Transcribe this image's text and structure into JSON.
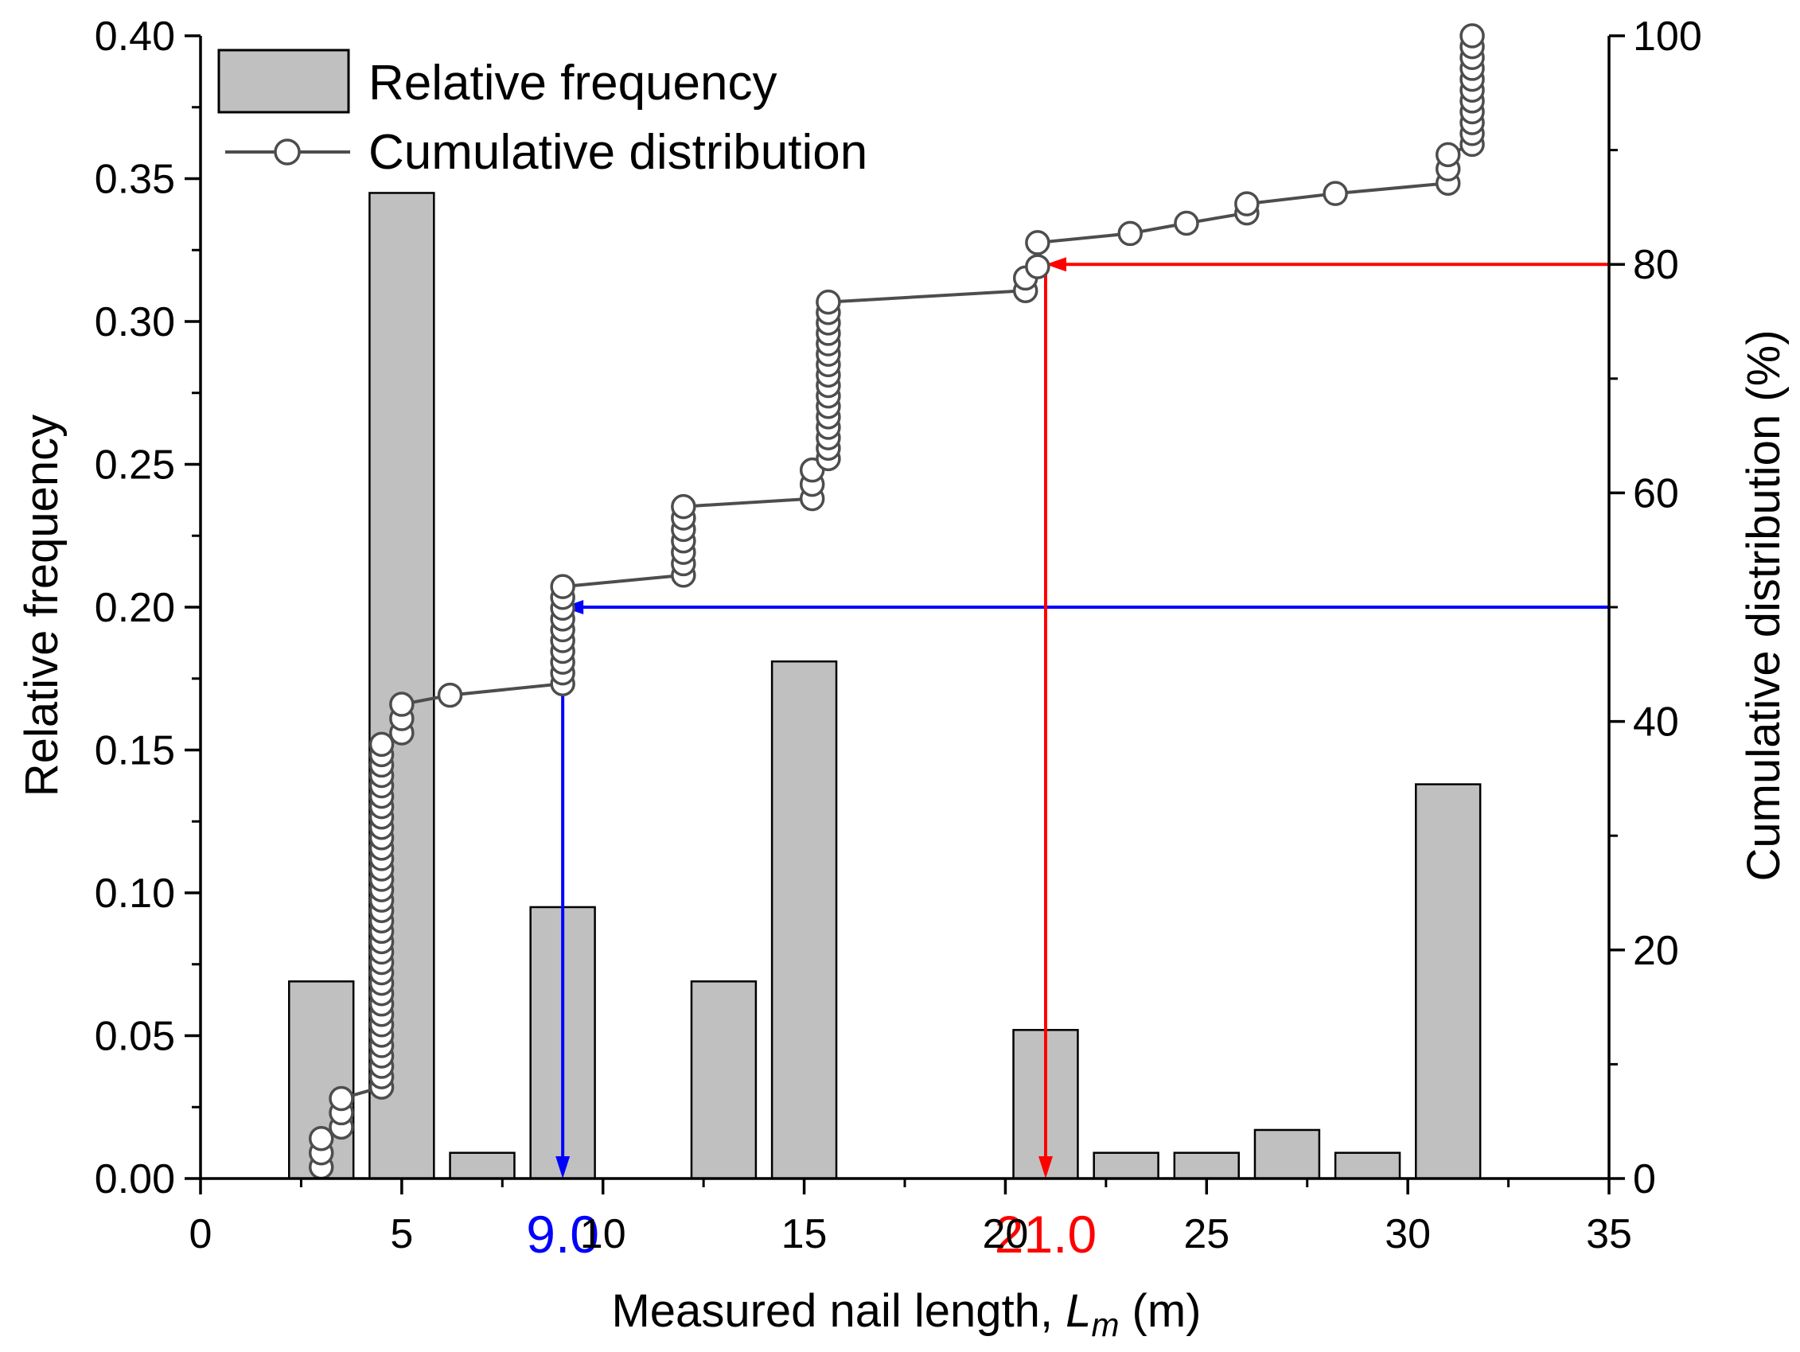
{
  "chart_data": {
    "type": "bar",
    "xlabel_main": "Measured nail length, ",
    "xlabel_var": "L",
    "xlabel_sub": "m",
    "xlabel_unit": " (m)",
    "ylabel_left": "Relative frequency",
    "ylabel_right": "Cumulative distribution (%)",
    "xlim": [
      0,
      35
    ],
    "ylim_left": [
      0,
      0.4
    ],
    "ylim_right": [
      0,
      100
    ],
    "x_ticks": [
      {
        "v": 0,
        "label": "0"
      },
      {
        "v": 5,
        "label": "5"
      },
      {
        "v": 10,
        "label": "10"
      },
      {
        "v": 15,
        "label": "15"
      },
      {
        "v": 20,
        "label": "20"
      },
      {
        "v": 25,
        "label": "25"
      },
      {
        "v": 30,
        "label": "30"
      },
      {
        "v": 35,
        "label": "35"
      }
    ],
    "y_left_ticks": [
      {
        "v": 0,
        "label": "0.00"
      },
      {
        "v": 0.05,
        "label": "0.05"
      },
      {
        "v": 0.1,
        "label": "0.10"
      },
      {
        "v": 0.15,
        "label": "0.15"
      },
      {
        "v": 0.2,
        "label": "0.20"
      },
      {
        "v": 0.25,
        "label": "0.25"
      },
      {
        "v": 0.3,
        "label": "0.30"
      },
      {
        "v": 0.35,
        "label": "0.35"
      },
      {
        "v": 0.4,
        "label": "0.40"
      }
    ],
    "y_right_ticks": [
      {
        "v": 0,
        "label": "0"
      },
      {
        "v": 20,
        "label": "20"
      },
      {
        "v": 40,
        "label": "40"
      },
      {
        "v": 60,
        "label": "60"
      },
      {
        "v": 80,
        "label": "80"
      },
      {
        "v": 100,
        "label": "100"
      }
    ],
    "bar_width": 1.6,
    "bars": [
      {
        "x": 3.0,
        "value": 0.069
      },
      {
        "x": 5.0,
        "value": 0.345
      },
      {
        "x": 7.0,
        "value": 0.009
      },
      {
        "x": 9.0,
        "value": 0.095
      },
      {
        "x": 13.0,
        "value": 0.069
      },
      {
        "x": 15.0,
        "value": 0.181
      },
      {
        "x": 21.0,
        "value": 0.052
      },
      {
        "x": 23.0,
        "value": 0.009
      },
      {
        "x": 25.0,
        "value": 0.009
      },
      {
        "x": 27.0,
        "value": 0.017
      },
      {
        "x": 29.0,
        "value": 0.009
      },
      {
        "x": 31.0,
        "value": 0.138
      }
    ],
    "cumulative_segments": [
      {
        "x": 3.0,
        "from": 1.0,
        "to": 3.5,
        "n": 3
      },
      {
        "x": 3.5,
        "from": 4.5,
        "to": 7.0,
        "n": 3
      },
      {
        "x": 4.5,
        "from": 8.0,
        "to": 38.0,
        "n": 34
      },
      {
        "x": 5.0,
        "from": 39.0,
        "to": 41.5,
        "n": 3
      },
      {
        "x": 6.2,
        "from": 42.3,
        "to": 42.3,
        "n": 1
      },
      {
        "x": 9.0,
        "from": 43.3,
        "to": 51.8,
        "n": 10
      },
      {
        "x": 12.0,
        "from": 52.8,
        "to": 58.8,
        "n": 7
      },
      {
        "x": 15.2,
        "from": 59.5,
        "to": 62.0,
        "n": 3
      },
      {
        "x": 15.6,
        "from": 63.0,
        "to": 76.7,
        "n": 16
      },
      {
        "x": 20.5,
        "from": 77.7,
        "to": 78.8,
        "n": 2
      },
      {
        "x": 20.8,
        "from": 79.8,
        "to": 81.9,
        "n": 2
      },
      {
        "x": 23.1,
        "from": 82.7,
        "to": 82.7,
        "n": 1
      },
      {
        "x": 24.5,
        "from": 83.6,
        "to": 83.6,
        "n": 1
      },
      {
        "x": 26.0,
        "from": 84.5,
        "to": 85.3,
        "n": 2
      },
      {
        "x": 28.2,
        "from": 86.2,
        "to": 86.2,
        "n": 1
      },
      {
        "x": 31.0,
        "from": 87.1,
        "to": 89.6,
        "n": 3
      },
      {
        "x": 31.6,
        "from": 90.5,
        "to": 100.0,
        "n": 11
      }
    ],
    "legend": {
      "position": "top-left",
      "bar_label": "Relative frequency",
      "line_label": "Cumulative distribution"
    },
    "annotations": [
      {
        "name": "median",
        "percent": 50,
        "x": 9.0,
        "label": "9.0",
        "color": "#0000ff"
      },
      {
        "name": "p80",
        "percent": 80,
        "x": 21.0,
        "label": "21.0",
        "color": "#ff0000"
      }
    ],
    "colors": {
      "bar_fill": "#c0c0c0",
      "line": "#4d4d4d",
      "marker_fill": "#ffffff"
    }
  }
}
